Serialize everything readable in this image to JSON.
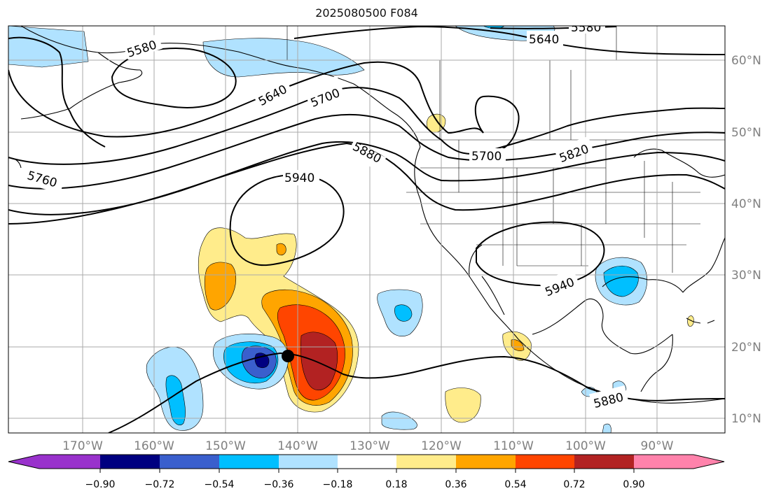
{
  "title": "2025080500 F084",
  "map": {
    "lon_ticks": [
      "170°W",
      "160°W",
      "150°W",
      "140°W",
      "130°W",
      "120°W",
      "110°W",
      "100°W",
      "90°W"
    ],
    "lat_ticks": [
      "60°N",
      "50°N",
      "40°N",
      "30°N",
      "20°N",
      "10°N"
    ],
    "grid": true,
    "contour_labels": [
      "5580",
      "5580",
      "5640",
      "5640",
      "5700",
      "5700",
      "5760",
      "5820",
      "5880",
      "5880",
      "5940",
      "5940"
    ],
    "storm_marker": "black-dot"
  },
  "colorbar": {
    "ticks": [
      "−0.90",
      "−0.72",
      "−0.54",
      "−0.36",
      "−0.18",
      "0.18",
      "0.36",
      "0.54",
      "0.72",
      "0.90"
    ],
    "colors": [
      "#9932cc",
      "#000080",
      "#3a5fcd",
      "#00bfff",
      "#b0e2ff",
      "#ffffff",
      "#ffec8b",
      "#ffa500",
      "#ff4500",
      "#b22222",
      "#ff82ab"
    ]
  }
}
